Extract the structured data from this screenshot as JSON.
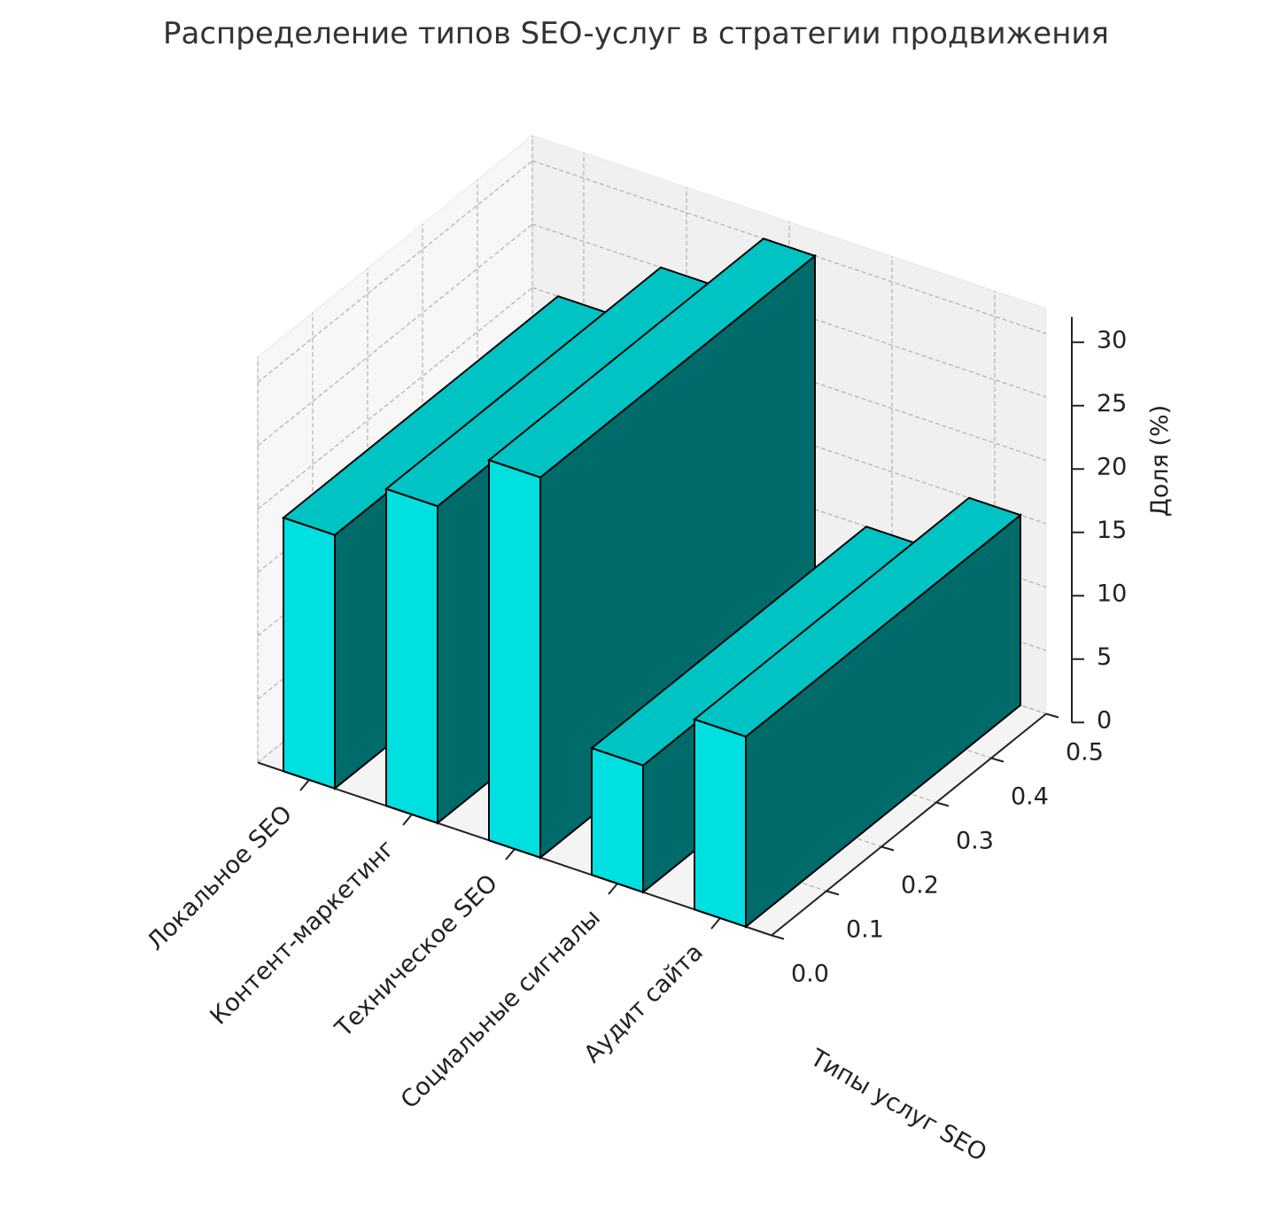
{
  "chart_data": {
    "type": "bar3d",
    "title": "Распределение типов SEO-услуг в стратегии продвижения",
    "xlabel": "Типы услуг SEO",
    "ylabel": "",
    "zlabel": "Доля (%)",
    "categories": [
      "Локальное SEO",
      "Контент-маркетинг",
      "Техническое SEO",
      "Социальные сигналы",
      "Аудит сайта"
    ],
    "values": [
      20,
      25,
      30,
      10,
      15
    ],
    "ylim": [
      0,
      0.5
    ],
    "yticks": [
      "0.0",
      "0.1",
      "0.2",
      "0.3",
      "0.4",
      "0.5"
    ],
    "zlim": [
      0,
      30
    ],
    "zticks": [
      "0",
      "5",
      "10",
      "15",
      "20",
      "25",
      "30"
    ],
    "grid": true,
    "colors": {
      "front": "#00e0e0",
      "top": "#00c4c4",
      "side": "#006b6b",
      "edge": "#000000"
    }
  }
}
